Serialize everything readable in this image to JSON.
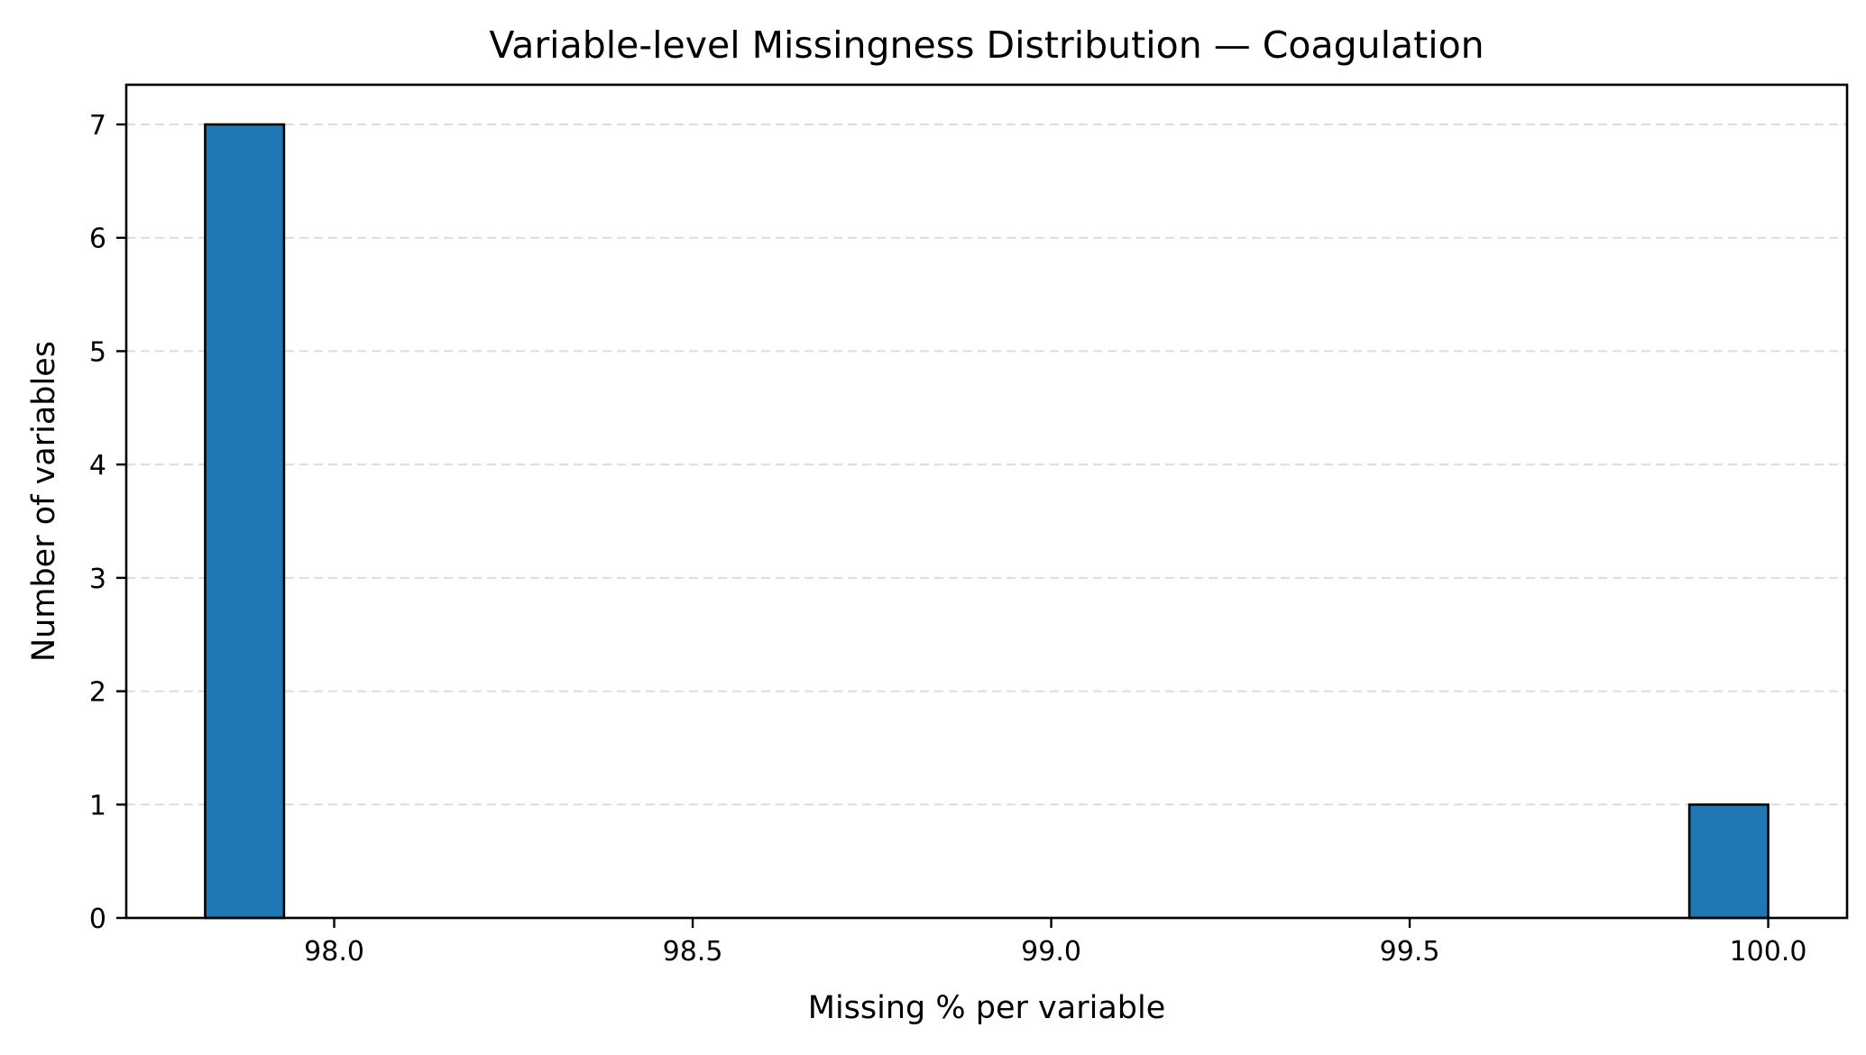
{
  "chart_data": {
    "type": "bar",
    "title": "Variable-level Missingness Distribution — Coagulation",
    "xlabel": "Missing % per variable",
    "ylabel": "Number of variables",
    "xlim": [
      97.71,
      100.11
    ],
    "ylim": [
      0,
      7.35
    ],
    "x_ticks": [
      98.0,
      98.5,
      99.0,
      99.5,
      100.0
    ],
    "x_tick_labels": [
      "98.0",
      "98.5",
      "99.0",
      "99.5",
      "100.0"
    ],
    "y_ticks": [
      0,
      1,
      2,
      3,
      4,
      5,
      6,
      7
    ],
    "y_tick_labels": [
      "0",
      "1",
      "2",
      "3",
      "4",
      "5",
      "6",
      "7"
    ],
    "grid": {
      "y": true,
      "x": false,
      "style": "dashed",
      "color": "#dcdcdc"
    },
    "bins": [
      {
        "x0": 97.82,
        "x1": 97.93,
        "count": 7
      },
      {
        "x0": 99.89,
        "x1": 100.0,
        "count": 1
      }
    ],
    "colors": {
      "bar_fill": "#1f77b4",
      "bar_edge": "#000000"
    }
  }
}
